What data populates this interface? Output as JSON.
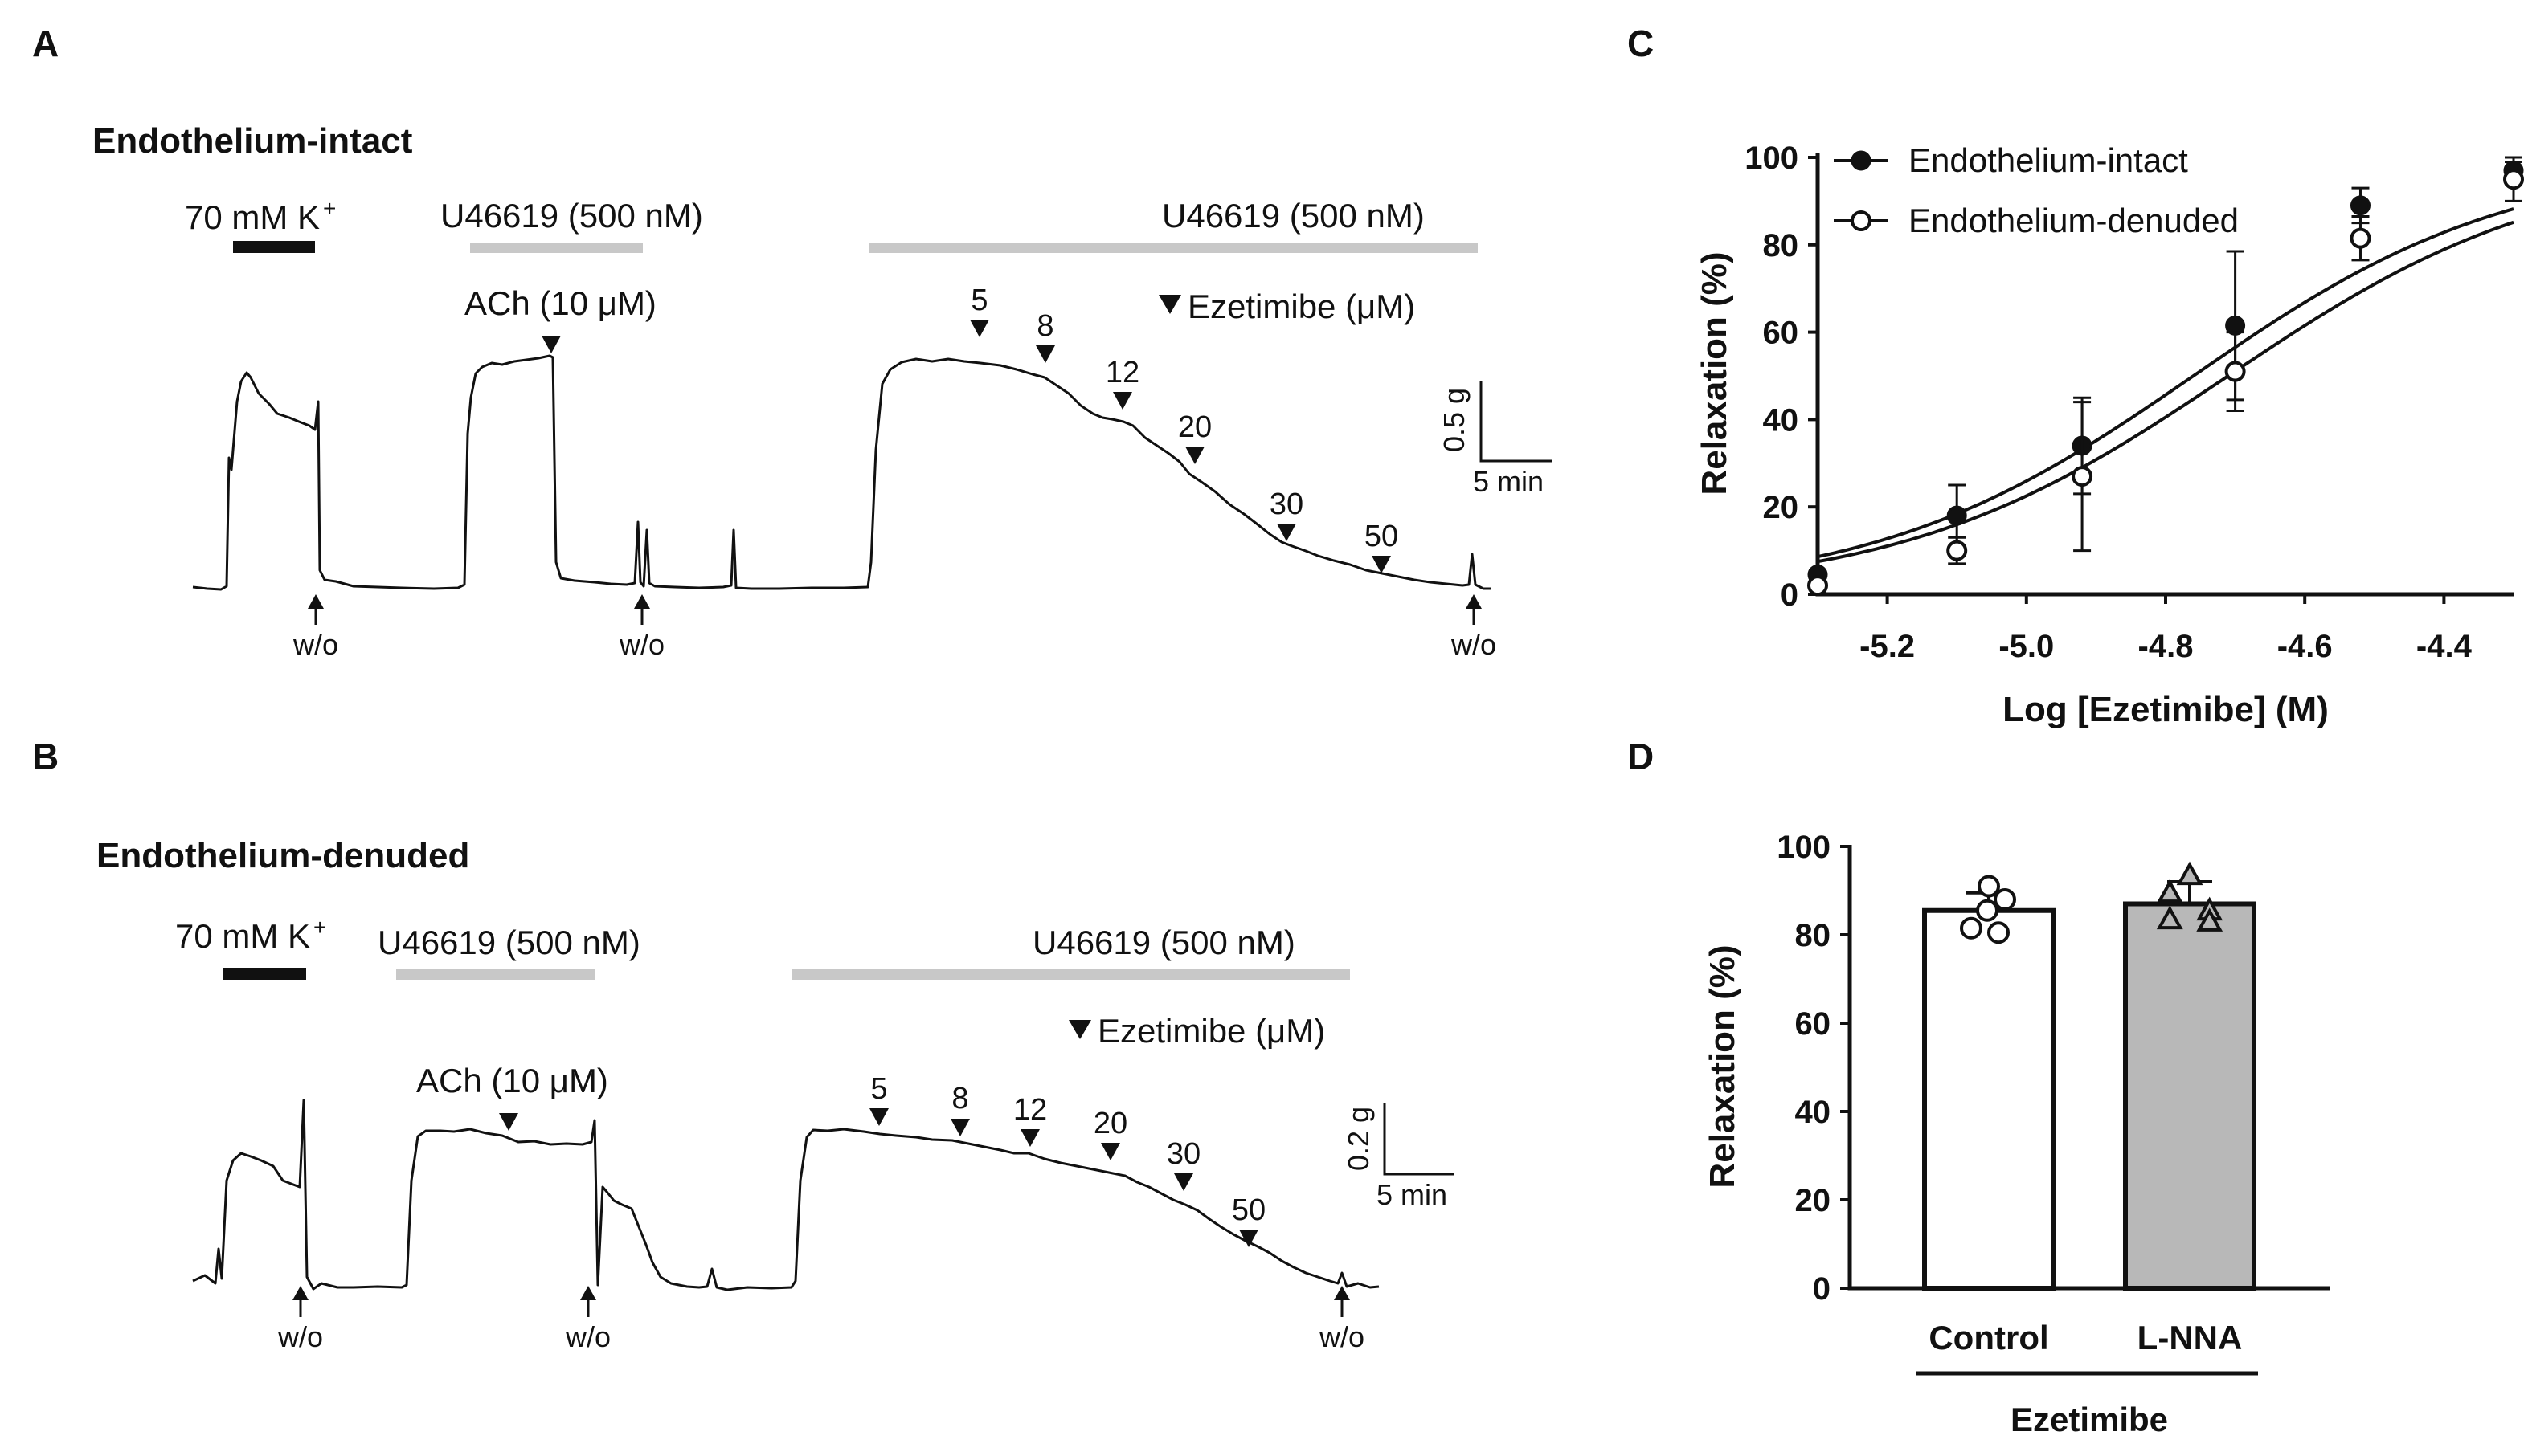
{
  "panels": {
    "a": "A",
    "b": "B",
    "c": "C",
    "d": "D"
  },
  "panel_a": {
    "subtitle": "Endothelium-intact",
    "k_label": "70 mM K",
    "k_sup": "+",
    "u_label_1": "U46619 (500 nM)",
    "u_label_2": "U46619 (500 nM)",
    "ach_label": "ACh (10 μM)",
    "ezetimibe_label": "Ezetimibe  (μM)",
    "doses": [
      "5",
      "8",
      "12",
      "20",
      "30",
      "50"
    ],
    "washouts": [
      "w/o",
      "w/o",
      "w/o"
    ],
    "scale_y": "0.5 g",
    "scale_x": "5 min"
  },
  "panel_b": {
    "subtitle": "Endothelium-denuded",
    "k_label": "70 mM K",
    "k_sup": "+",
    "u_label_1": "U46619 (500 nM)",
    "u_label_2": "U46619 (500 nM)",
    "ach_label": "ACh (10 μM)",
    "ezetimibe_label": "Ezetimibe  (μM)",
    "doses": [
      "5",
      "8",
      "12",
      "20",
      "30",
      "50"
    ],
    "washouts": [
      "w/o",
      "w/o",
      "w/o"
    ],
    "scale_y": "0.2 g",
    "scale_x": "5 min"
  },
  "chart_data": [
    {
      "panel": "C",
      "type": "scatter",
      "xlabel": "Log [Ezetimibe] (M)",
      "ylabel": "Relaxation (%)",
      "xlim": [
        -5.3,
        -4.3
      ],
      "ylim": [
        0,
        100
      ],
      "xticks": [
        "-5.2",
        "-5.0",
        "-4.8",
        "-4.6",
        "-4.4"
      ],
      "yticks": [
        "0",
        "20",
        "40",
        "60",
        "80",
        "100"
      ],
      "x": [
        -5.3,
        -5.1,
        -4.92,
        -4.7,
        -4.52,
        -4.3
      ],
      "series": [
        {
          "name": "Endothelium-intact",
          "marker": "filled-circle",
          "values": [
            4.5,
            18,
            34,
            61.5,
            89,
            97
          ],
          "errors": [
            1,
            7,
            11,
            17,
            4,
            2
          ],
          "fit": {
            "top": 100,
            "log_ec50": -4.76,
            "hill": 1.9
          }
        },
        {
          "name": "Endothelium-denuded",
          "marker": "open-circle",
          "values": [
            2,
            10,
            27,
            51,
            81.5,
            95
          ],
          "errors": [
            1,
            3,
            17,
            9,
            5,
            5
          ],
          "fit": {
            "top": 100,
            "log_ec50": -4.71,
            "hill": 1.85
          }
        }
      ]
    },
    {
      "panel": "D",
      "type": "bar",
      "ylabel": "Relaxation (%)",
      "ylim": [
        0,
        100
      ],
      "yticks": [
        "0",
        "20",
        "40",
        "60",
        "80",
        "100"
      ],
      "categories": [
        "Control",
        "L-NNA"
      ],
      "group_label": "Ezetimibe",
      "values": [
        85.5,
        87
      ],
      "errors": [
        4,
        5
      ],
      "bar_colors": [
        "#ffffff",
        "#b8b8b8"
      ],
      "points": [
        [
          91,
          88,
          85.5,
          81.5,
          80.5
        ],
        [
          93.5,
          89.5,
          85.5,
          83.5,
          83
        ]
      ]
    }
  ]
}
